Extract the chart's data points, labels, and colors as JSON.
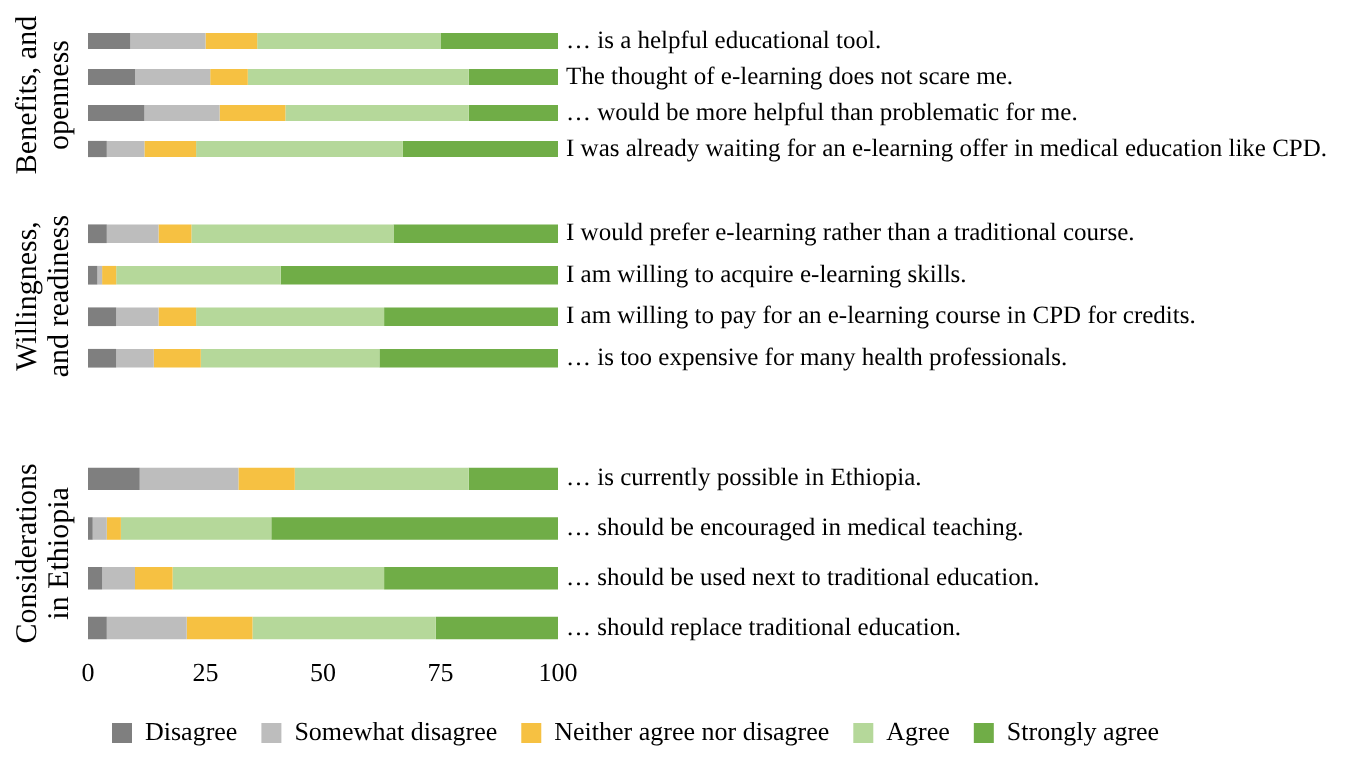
{
  "chart_data": [
    {
      "type": "bar",
      "orientation": "horizontal",
      "stacked": true,
      "ylabel": "Benefits, and openness",
      "categories": [
        "… is a helpful educational tool.",
        "The thought of e-learning does not scare me.",
        "… would be more helpful than problematic for me.",
        "I was already waiting for an e-learning offer in medical education like CPD."
      ],
      "xlim": [
        0,
        100
      ],
      "xticks": [
        0,
        25,
        50,
        75,
        100
      ],
      "tick_labels": "y",
      "grid": false,
      "legend": false,
      "series": [
        {
          "color": "#7f7f7f",
          "values": [
            9,
            10,
            12,
            4
          ]
        },
        {
          "color": "#bdbdbd",
          "values": [
            16,
            16,
            16,
            8
          ]
        },
        {
          "color": "#f6c142",
          "values": [
            11,
            8,
            14,
            11
          ]
        },
        {
          "color": "#b5d89a",
          "values": [
            39,
            47,
            39,
            44
          ]
        },
        {
          "color": "#70ad47",
          "values": [
            25,
            19,
            19,
            33
          ]
        }
      ]
    },
    {
      "type": "bar",
      "orientation": "horizontal",
      "stacked": true,
      "ylabel": "Willingness, and readiness",
      "categories": [
        "I would prefer e-learning rather than a traditional course.",
        "I am willing to acquire e-learning skills.",
        "I am willing to pay for an e-learning course in CPD for credits.",
        "… is too expensive for many health professionals."
      ],
      "xlim": [
        0,
        100
      ],
      "xticks": [
        0,
        25,
        50,
        75,
        100
      ],
      "tick_labels": "y",
      "grid": false,
      "legend": false,
      "series": [
        {
          "color": "#7f7f7f",
          "values": [
            4,
            2,
            6,
            6
          ]
        },
        {
          "color": "#bdbdbd",
          "values": [
            11,
            1,
            9,
            8
          ]
        },
        {
          "color": "#f6c142",
          "values": [
            7,
            3,
            8,
            10
          ]
        },
        {
          "color": "#b5d89a",
          "values": [
            43,
            35,
            40,
            38
          ]
        },
        {
          "color": "#70ad47",
          "values": [
            35,
            59,
            37,
            38
          ]
        }
      ]
    },
    {
      "type": "bar",
      "orientation": "horizontal",
      "stacked": true,
      "ylabel": "Considerations in Ethiopia",
      "categories": [
        "… is currently possible in Ethiopia.",
        "… should be encouraged in medical teaching.",
        "… should be used next to traditional education.",
        "… should replace traditional education."
      ],
      "xlim": [
        0,
        100
      ],
      "xticks": [
        0,
        25,
        50,
        75,
        100
      ],
      "grid": false,
      "legend": "bottom",
      "series": [
        {
          "name": "Disagree",
          "color": "#7f7f7f",
          "values": [
            11,
            1,
            3,
            4
          ]
        },
        {
          "name": "Somewhat disagree",
          "color": "#bdbdbd",
          "values": [
            21,
            3,
            7,
            17
          ]
        },
        {
          "name": "Neither agree nor disagree",
          "color": "#f6c142",
          "values": [
            12,
            3,
            8,
            14
          ]
        },
        {
          "name": "Agree",
          "color": "#b5d89a",
          "values": [
            37,
            32,
            45,
            39
          ]
        },
        {
          "name": "Strongly agree",
          "color": "#70ad47",
          "values": [
            19,
            61,
            37,
            26
          ]
        }
      ]
    }
  ]
}
